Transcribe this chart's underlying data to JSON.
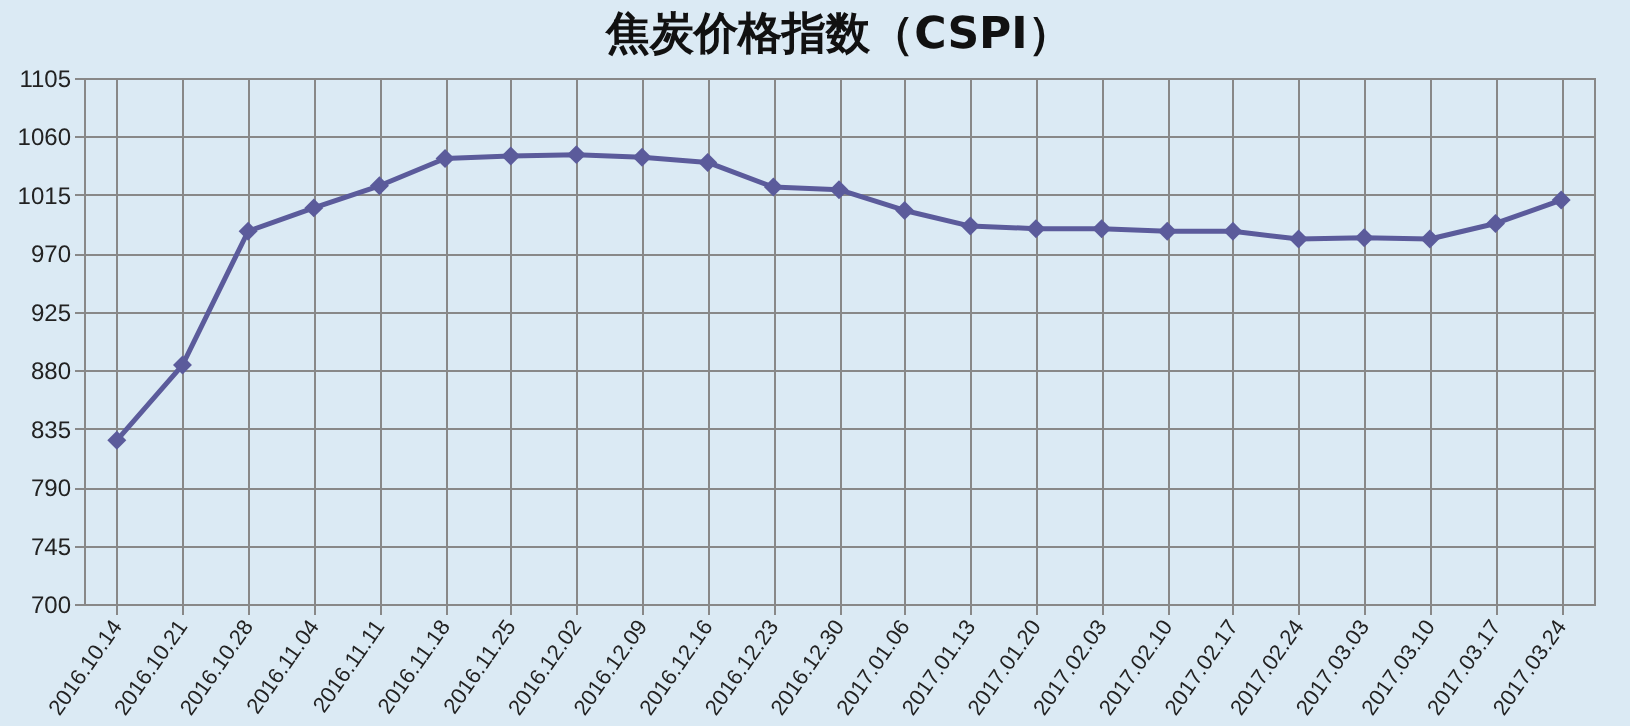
{
  "chart_data": {
    "type": "line",
    "title": "焦炭价格指数（CSPI）",
    "categories": [
      "2016.10.14",
      "2016.10.21",
      "2016.10.28",
      "2016.11.04",
      "2016.11.11",
      "2016.11.18",
      "2016.11.25",
      "2016.12.02",
      "2016.12.09",
      "2016.12.16",
      "2016.12.23",
      "2016.12.30",
      "2017.01.06",
      "2017.01.13",
      "2017.01.20",
      "2017.02.03",
      "2017.02.10",
      "2017.02.17",
      "2017.02.24",
      "2017.03.03",
      "2017.03.10",
      "2017.03.17",
      "2017.03.24"
    ],
    "series": [
      {
        "color": "#5b5b9b",
        "values": [
          826,
          884,
          987,
          1005,
          1022,
          1043,
          1045,
          1046,
          1044,
          1040,
          1021,
          1019,
          1003,
          991,
          989,
          989,
          987,
          987,
          981,
          982,
          981,
          993,
          1011
        ]
      }
    ],
    "ylim": [
      700,
      1105
    ],
    "yticks": [
      700,
      745,
      790,
      835,
      880,
      925,
      970,
      1015,
      1060,
      1105
    ],
    "grid": true,
    "marker": "diamond",
    "line_style": "solid"
  }
}
